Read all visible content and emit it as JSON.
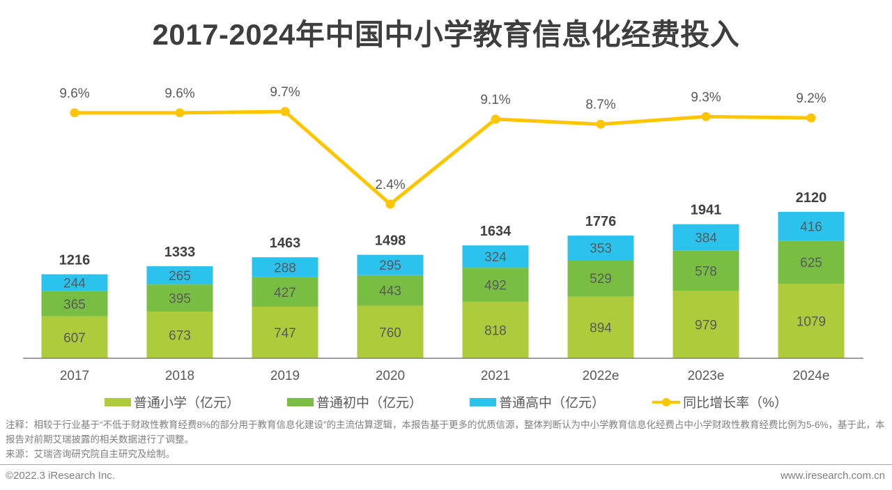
{
  "title": "2017-2024年中国中小学教育信息化经费投入",
  "chart_data": {
    "type": "bar",
    "stacked": true,
    "title": "2017-2024年中国中小学教育信息化经费投入",
    "categories": [
      "2017",
      "2018",
      "2019",
      "2020",
      "2021",
      "2022e",
      "2023e",
      "2024e"
    ],
    "series": [
      {
        "name": "普通小学（亿元）",
        "type": "bar",
        "color": "#AECB3C",
        "values": [
          607,
          673,
          747,
          760,
          818,
          894,
          979,
          1079
        ]
      },
      {
        "name": "普通初中（亿元）",
        "type": "bar",
        "color": "#78BE42",
        "values": [
          365,
          395,
          427,
          443,
          492,
          529,
          578,
          625
        ]
      },
      {
        "name": "普通高中（亿元）",
        "type": "bar",
        "color": "#2BC2EE",
        "values": [
          244,
          265,
          288,
          295,
          324,
          353,
          384,
          416
        ]
      },
      {
        "name": "同比增长率（%）",
        "type": "line",
        "color": "#FFC600",
        "values": [
          9.6,
          9.6,
          9.7,
          2.4,
          9.1,
          8.7,
          9.3,
          9.2
        ],
        "point_labels": [
          "9.6%",
          "9.6%",
          "9.7%",
          "2.4%",
          "9.1%",
          "8.7%",
          "9.3%",
          "9.2%"
        ]
      }
    ],
    "totals": [
      1216,
      1333,
      1463,
      1498,
      1634,
      1776,
      1941,
      2120
    ],
    "grid": false,
    "legend_position": "bottom",
    "colors": {
      "axis_line": "#7f7f7f",
      "segment_label": "#595959",
      "total_label": "#404040",
      "percent_label": "#595959",
      "x_label": "#595959"
    }
  },
  "notes": {
    "note": "注释：相较于行业基于“不低于财政性教育经费8%的部分用于教育信息化建设”的主流估算逻辑，本报告基于更多的优质信源，整体判断认为中小学教育信息化经费占中小学财政性教育经费比例为5-6%，基于此，本报告对前期艾瑞披露的相关数据进行了调整。",
    "source": "来源：艾瑞咨询研究院自主研究及绘制。"
  },
  "footer": {
    "left": "©2022.3 iResearch Inc.",
    "right": "www.iresearch.com.cn"
  }
}
